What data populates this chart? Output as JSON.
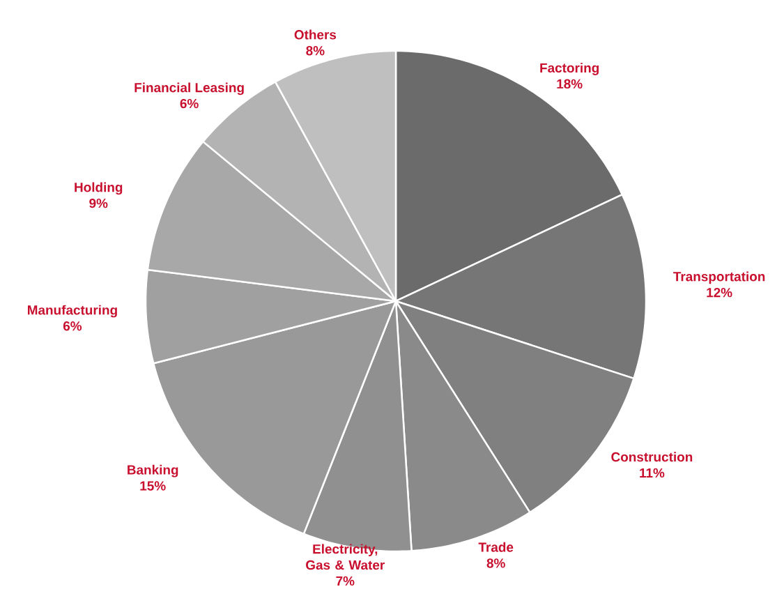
{
  "chart_data": {
    "type": "pie",
    "categories": [
      "Factoring",
      "Transportation",
      "Construction",
      "Trade",
      "Electricity, Gas & Water",
      "Banking",
      "Manufacturing",
      "Holding",
      "Financial Leasing",
      "Others"
    ],
    "values": [
      18,
      12,
      11,
      8,
      7,
      15,
      6,
      9,
      6,
      8
    ],
    "value_labels": [
      "18%",
      "12%",
      "11%",
      "8%",
      "7%",
      "15%",
      "6%",
      "9%",
      "6%",
      "8%"
    ],
    "data_labels": true,
    "colors": [
      "#6b6b6b",
      "#767676",
      "#808080",
      "#8a8a8a",
      "#909090",
      "#999999",
      "#a0a0a0",
      "#a8a8a8",
      "#b3b3b3",
      "#bfbfbf"
    ]
  }
}
